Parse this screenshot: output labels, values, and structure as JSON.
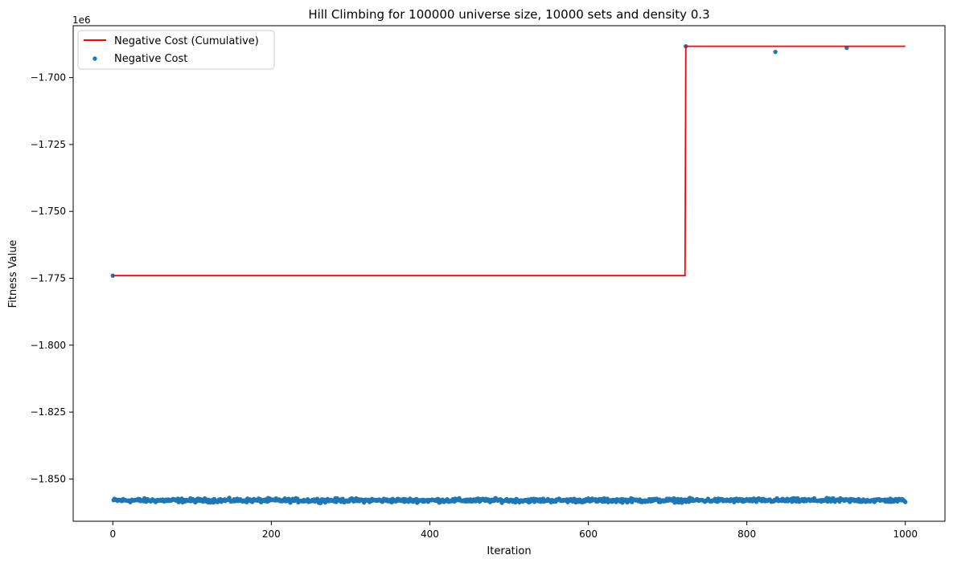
{
  "chart_data": {
    "type": "line",
    "title": "Hill Climbing for 100000 universe size, 10000 sets and density 0.3",
    "xlabel": "Iteration",
    "ylabel": "Fitness Value",
    "y_offset_label": "1e6",
    "xlim": [
      -50,
      1050
    ],
    "ylim": [
      -1865800,
      -1680600
    ],
    "x_ticks": [
      0,
      200,
      400,
      600,
      800,
      1000
    ],
    "y_ticks": [
      -1850000,
      -1825000,
      -1800000,
      -1775000,
      -1750000,
      -1725000,
      -1700000
    ],
    "x_tick_labels": [
      "0",
      "200",
      "400",
      "600",
      "800",
      "1000"
    ],
    "y_tick_labels": [
      "−1.850",
      "−1.825",
      "−1.800",
      "−1.775",
      "−1.750",
      "−1.725",
      "−1.700"
    ],
    "grid": false,
    "legend_position": "top-left",
    "series": [
      {
        "name": "Negative Cost (Cumulative)",
        "kind": "step-line",
        "color": "#ff0000",
        "x": [
          0,
          722,
          723,
          1000
        ],
        "y": [
          -1774000,
          -1774000,
          -1688300,
          -1688300
        ]
      },
      {
        "name": "Negative Cost",
        "kind": "scatter",
        "color": "#1f77b4",
        "outliers": {
          "x": [
            0,
            723,
            836,
            926
          ],
          "y": [
            -1774000,
            -1688300,
            -1690400,
            -1688900
          ]
        },
        "bulk": {
          "x_range": [
            1,
            1000
          ],
          "center": -1858000,
          "spread": 700,
          "note_count": 1000
        }
      }
    ]
  }
}
